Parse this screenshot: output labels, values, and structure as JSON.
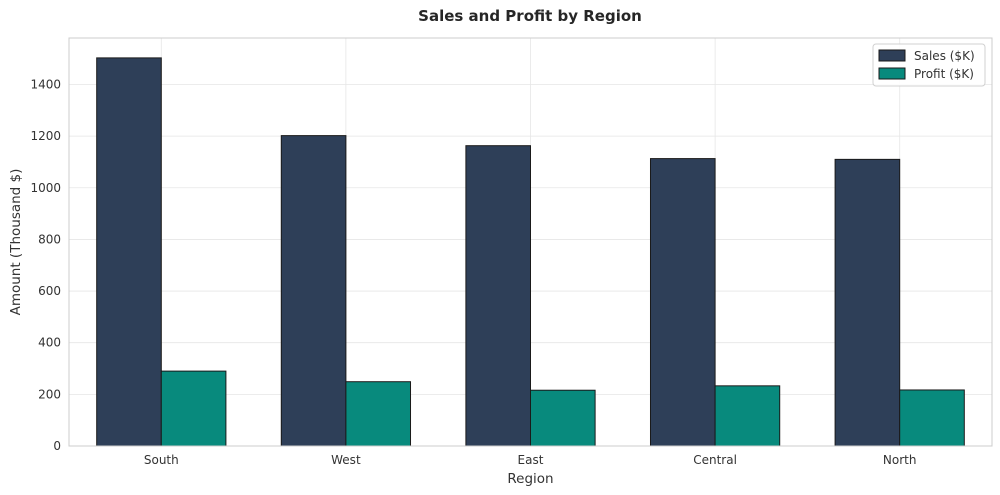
{
  "chart_data": {
    "type": "bar",
    "title": "Sales and Profit by Region",
    "xlabel": "Region",
    "ylabel": "Amount (Thousand $)",
    "categories": [
      "South",
      "West",
      "East",
      "Central",
      "North"
    ],
    "series": [
      {
        "name": "Sales ($K)",
        "values": [
          1503,
          1202,
          1163,
          1113,
          1110
        ],
        "color": "#2e3f58"
      },
      {
        "name": "Profit ($K)",
        "values": [
          290,
          249,
          216,
          233,
          217
        ],
        "color": "#088a7d"
      }
    ],
    "ylim": [
      0,
      1580
    ],
    "yticks": [
      0,
      200,
      400,
      600,
      800,
      1000,
      1200,
      1400
    ],
    "grid": true,
    "legend_position": "top-right"
  },
  "colors": {
    "grid": "#e6e6e6",
    "axes_border": "#cccccc",
    "bar_edge": "#1a1a1a"
  }
}
